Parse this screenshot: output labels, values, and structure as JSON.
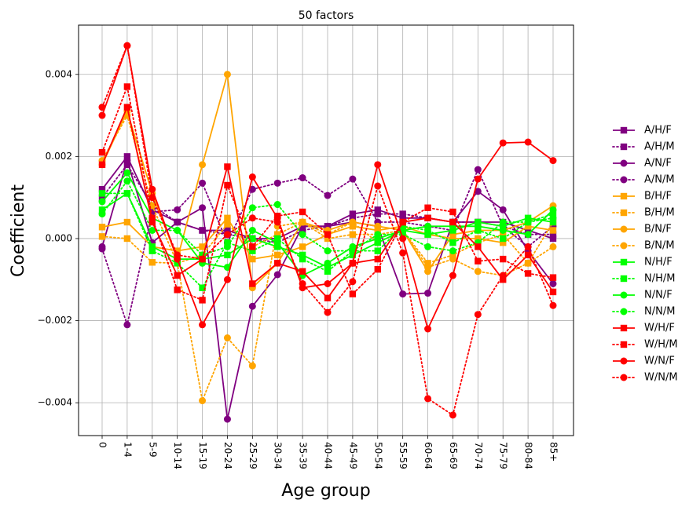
{
  "chart_data": {
    "type": "line",
    "title": "50 factors",
    "xlabel": "Age group",
    "ylabel": "Coefficient",
    "ylim": [
      -0.0048,
      0.0052
    ],
    "yticks": [
      -0.004,
      -0.002,
      0.0,
      0.002,
      0.004
    ],
    "ytick_labels": [
      "−0.004",
      "−0.002",
      "0.000",
      "0.002",
      "0.004"
    ],
    "grid": true,
    "legend_position": "right",
    "categories": [
      "0",
      "1-4",
      "5-9",
      "10-14",
      "15-19",
      "20-24",
      "25-29",
      "30-34",
      "35-39",
      "40-44",
      "45-49",
      "50-54",
      "55-59",
      "60-64",
      "65-69",
      "70-74",
      "75-79",
      "80-84",
      "85+"
    ],
    "series": [
      {
        "name": "A/H/F",
        "color": "#800080",
        "marker": "square",
        "linestyle": "solid",
        "values": [
          0.0012,
          0.002,
          0.0007,
          0.0004,
          0.0002,
          0.0002,
          0.0,
          0.0,
          0.0003,
          0.0003,
          0.0006,
          0.0007,
          0.0005,
          0.0005,
          0.0004,
          0.0004,
          0.0004,
          0.0002,
          0.0
        ]
      },
      {
        "name": "A/H/M",
        "color": "#800080",
        "marker": "square",
        "linestyle": "dotted",
        "values": [
          0.001,
          0.0018,
          0.0008,
          0.0004,
          0.0002,
          0.0001,
          0.0,
          -0.0001,
          0.0002,
          0.0003,
          0.0005,
          0.0006,
          0.0006,
          0.0005,
          0.0004,
          0.0004,
          0.0003,
          0.0001,
          0.0001
        ]
      },
      {
        "name": "A/N/F",
        "color": "#800080",
        "marker": "circle",
        "linestyle": "solid",
        "values": [
          -0.0002,
          0.0019,
          -0.0001,
          0.0004,
          0.00075,
          -0.0044,
          -0.00165,
          -0.00088,
          0.0003,
          0.0003,
          0.0004,
          0.0003,
          -0.00135,
          -0.00133,
          0.0004,
          0.00115,
          0.0007,
          -0.0003,
          -0.0011
        ]
      },
      {
        "name": "A/N/M",
        "color": "#800080",
        "marker": "circle",
        "linestyle": "dotted",
        "values": [
          -0.00025,
          -0.0021,
          0.00065,
          0.0007,
          0.00135,
          -0.0001,
          0.0012,
          0.00135,
          0.00148,
          0.00105,
          0.00145,
          0.0004,
          0.0004,
          0.0003,
          0.0002,
          0.00168,
          0.0003,
          -0.0002,
          0.0003
        ]
      },
      {
        "name": "B/H/F",
        "color": "#FFA500",
        "marker": "square",
        "linestyle": "solid",
        "values": [
          0.00028,
          0.0004,
          -0.0002,
          -0.0003,
          -0.0002,
          0.0005,
          -0.0005,
          -0.0004,
          -0.0002,
          0.0001,
          0.0003,
          0.0002,
          0.0003,
          0.0001,
          0.0,
          0.0,
          -0.0001,
          0.0003,
          0.0002
        ]
      },
      {
        "name": "B/H/M",
        "color": "#FFA500",
        "marker": "square",
        "linestyle": "dotted",
        "values": [
          5e-05,
          0.0,
          -0.00058,
          -0.0006,
          -0.0004,
          0.00035,
          -0.0002,
          0.0001,
          0.0004,
          0.0,
          0.0001,
          0.0001,
          0.0002,
          -0.0006,
          -0.0004,
          -0.0001,
          0.0001,
          -0.0006,
          0.0004
        ]
      },
      {
        "name": "B/N/F",
        "color": "#FFA500",
        "marker": "circle",
        "linestyle": "solid",
        "values": [
          0.0018,
          0.0031,
          0.0011,
          -0.0005,
          0.0018,
          0.004,
          -0.0012,
          -0.0006,
          0.0004,
          0.0002,
          0.0004,
          0.0003,
          0.0002,
          -0.0008,
          0.0001,
          0.0002,
          0.0002,
          0.0004,
          0.0008
        ]
      },
      {
        "name": "B/N/M",
        "color": "#FFA500",
        "marker": "circle",
        "linestyle": "dotted",
        "values": [
          0.0019,
          0.003,
          0.0008,
          -0.0006,
          -0.00395,
          -0.00242,
          -0.0031,
          0.0003,
          0.0004,
          0.0001,
          0.0004,
          -0.0001,
          0.0002,
          -0.0007,
          -0.0005,
          -0.0008,
          -0.0009,
          -0.0006,
          -0.0002
        ]
      },
      {
        "name": "N/H/F",
        "color": "#00FF00",
        "marker": "square",
        "linestyle": "solid",
        "values": [
          0.0007,
          0.0011,
          -0.0002,
          -0.0005,
          -0.0005,
          -0.0004,
          0.0,
          -0.0002,
          -0.0004,
          -0.0007,
          -0.0004,
          -0.0001,
          0.0002,
          0.0001,
          0.0002,
          0.0004,
          0.0003,
          0.0005,
          0.0004
        ]
      },
      {
        "name": "N/H/M",
        "color": "#00FF00",
        "marker": "square",
        "linestyle": "dotted",
        "values": [
          0.0011,
          0.0011,
          -0.0003,
          -0.0006,
          -0.0012,
          -0.0001,
          -0.0003,
          0.0,
          -0.0005,
          -0.0008,
          -0.0003,
          -0.0003,
          0.0003,
          0.0002,
          -0.0001,
          0.0002,
          0.0,
          0.0004,
          0.0006
        ]
      },
      {
        "name": "N/N/F",
        "color": "#00FF00",
        "marker": "circle",
        "linestyle": "solid",
        "values": [
          0.0009,
          0.0016,
          0.0005,
          0.0002,
          -0.0006,
          -0.0007,
          0.0002,
          -0.0001,
          -0.0009,
          -0.0006,
          -0.0002,
          0.0,
          0.0002,
          0.0003,
          0.0003,
          0.0003,
          0.0002,
          0.0001,
          0.0007
        ]
      },
      {
        "name": "N/N/M",
        "color": "#00FF00",
        "marker": "circle",
        "linestyle": "dotted",
        "values": [
          0.0006,
          0.0014,
          0.0002,
          0.0002,
          -0.0004,
          -0.0002,
          0.00075,
          0.00083,
          0.0001,
          -0.0003,
          -0.0003,
          0.0001,
          0.0001,
          -0.0002,
          -0.0003,
          -0.0001,
          0.0004,
          0.0004,
          0.0005
        ]
      },
      {
        "name": "W/H/F",
        "color": "#FF0000",
        "marker": "square",
        "linestyle": "solid",
        "values": [
          0.0018,
          0.0032,
          0.0004,
          -0.0009,
          -0.0005,
          0.00175,
          -0.0011,
          -0.0006,
          -0.0008,
          -0.00145,
          -0.0006,
          -0.0005,
          0.0004,
          0.0005,
          0.0004,
          -0.0002,
          -0.001,
          -0.0004,
          -0.0013
        ]
      },
      {
        "name": "W/H/M",
        "color": "#FF0000",
        "marker": "square",
        "linestyle": "dotted",
        "values": [
          0.0021,
          0.0037,
          0.0005,
          -0.00125,
          -0.0015,
          0.0013,
          -0.0002,
          0.00055,
          0.00065,
          0.0001,
          -0.00135,
          -0.00075,
          0.0004,
          0.00075,
          0.00065,
          -0.00055,
          -0.0005,
          -0.00085,
          -0.00095
        ]
      },
      {
        "name": "W/N/F",
        "color": "#FF0000",
        "marker": "circle",
        "linestyle": "solid",
        "values": [
          0.003,
          0.0047,
          0.0012,
          -0.0005,
          -0.0021,
          -0.001,
          0.0015,
          0.0005,
          -0.0012,
          -0.0011,
          -0.0006,
          0.0018,
          0.0,
          -0.0022,
          -0.0009,
          0.00145,
          0.00233,
          0.00235,
          0.0019
        ]
      },
      {
        "name": "W/N/M",
        "color": "#FF0000",
        "marker": "circle",
        "linestyle": "dotted",
        "values": [
          0.0032,
          0.0047,
          0.001,
          -0.0004,
          -0.0005,
          0.0001,
          0.0005,
          0.0004,
          -0.0011,
          -0.0018,
          -0.00105,
          0.00128,
          -0.00035,
          -0.0039,
          -0.0043,
          -0.00185,
          -0.0009,
          -0.0002,
          -0.00163
        ]
      }
    ]
  }
}
